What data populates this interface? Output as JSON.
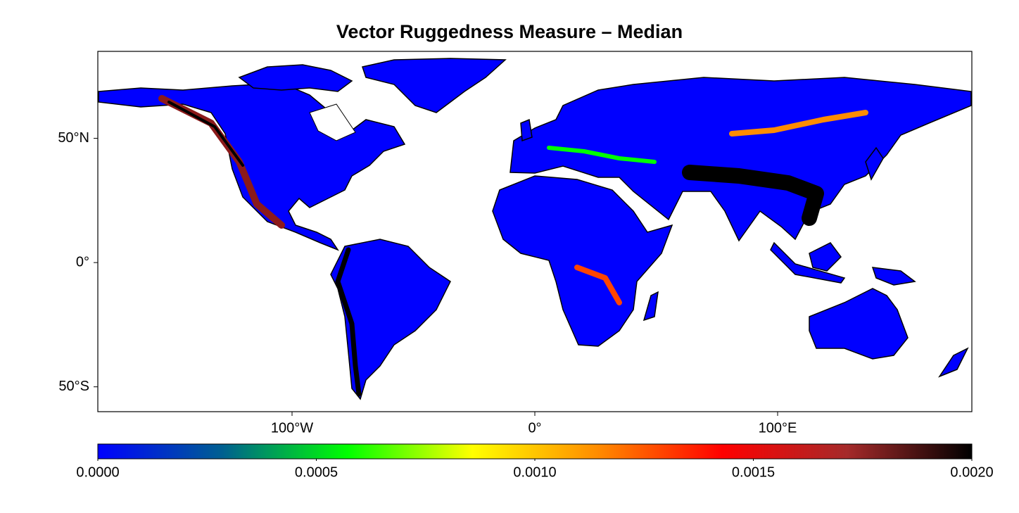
{
  "title": "Vector Ruggedness Measure – Median",
  "map": {
    "xlim": [
      -180,
      180
    ],
    "ylim": [
      -60,
      85
    ],
    "xticks": [
      {
        "value": -100,
        "label": "100°W"
      },
      {
        "value": 0,
        "label": "0°"
      },
      {
        "value": 100,
        "label": "100°E"
      }
    ],
    "yticks": [
      {
        "value": 50,
        "label": "50°N"
      },
      {
        "value": 0,
        "label": "0°"
      },
      {
        "value": -50,
        "label": "50°S"
      }
    ]
  },
  "colorbar": {
    "lim": [
      0,
      0.002
    ],
    "colors": [
      "#0000ff",
      "#006090",
      "#00ff00",
      "#ffff00",
      "#ff8c00",
      "#ff0000",
      "#a52a2a",
      "#000000"
    ],
    "ticks": [
      {
        "value": 0,
        "label": "0.0000"
      },
      {
        "value": 0.0005,
        "label": "0.0005"
      },
      {
        "value": 0.001,
        "label": "0.0010"
      },
      {
        "value": 0.0015,
        "label": "0.0015"
      },
      {
        "value": 0.002,
        "label": "0.0020"
      }
    ]
  }
}
